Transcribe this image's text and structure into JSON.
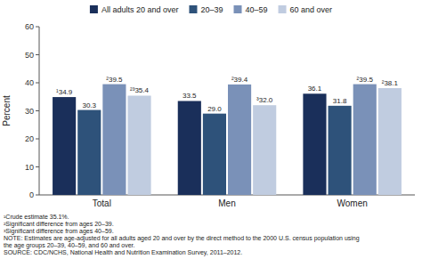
{
  "chart_data": {
    "type": "bar",
    "ylabel": "Percent",
    "categories": [
      "Total",
      "Men",
      "Women"
    ],
    "series": [
      {
        "name": "All adults 20 and over",
        "color": "#1a2f5a",
        "values": [
          34.9,
          33.5,
          36.1
        ],
        "value_labels": [
          "¹34.9",
          "33.5",
          "36.1"
        ]
      },
      {
        "name": "20–39",
        "color": "#2e527a",
        "values": [
          30.3,
          29.0,
          31.8
        ],
        "value_labels": [
          "30.3",
          "29.0",
          "31.8"
        ]
      },
      {
        "name": "40–59",
        "color": "#7a91b8",
        "values": [
          39.5,
          39.4,
          39.5
        ],
        "value_labels": [
          "²39.5",
          "²39.4",
          "²39.5"
        ]
      },
      {
        "name": "60 and over",
        "color": "#c0cce0",
        "values": [
          35.4,
          32.0,
          38.1
        ],
        "value_labels": [
          "²³35.4",
          "³32.0",
          "²38.1"
        ]
      }
    ],
    "ylim": [
      0,
      60
    ],
    "yticks": [
      0,
      10,
      20,
      30,
      40,
      50,
      60
    ],
    "data_labels": true,
    "legend": "top",
    "annotations": [
      "¹Crude estimate 35.1%.",
      "²Significant difference from ages 20–39.",
      "³Significant difference from ages 40–59.",
      "NOTE: Estimates are age-adjusted for all adults aged 20 and over by the direct method to the 2000 U.S. census population using",
      "the age groups 20–39, 40–59, and 60 and over.",
      "SOURCE: CDC/NCHS, National Health and Nutrition Examination Survey, 2011–2012."
    ]
  }
}
